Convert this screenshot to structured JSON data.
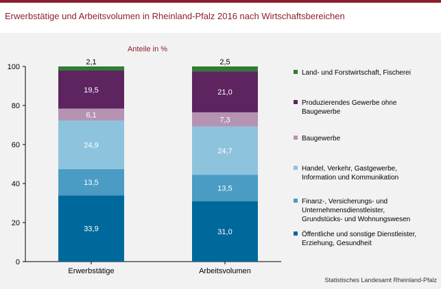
{
  "title": "Erwerbstätige und Arbeitsvolumen in Rheinland-Pfalz 2016 nach Wirtschaftsbereichen",
  "source": "Statistisches Landesamt Rheinland-Pfalz",
  "chart_data": {
    "type": "bar",
    "stacked": true,
    "unit_label": "Anteile in %",
    "categories": [
      "Erwerbstätige",
      "Arbeitsvolumen"
    ],
    "ylim": [
      0,
      100
    ],
    "yticks": [
      0,
      20,
      40,
      60,
      80,
      100
    ],
    "grid": false,
    "legend_position": "right",
    "series": [
      {
        "name": "Öffentliche und sonstige Dienstleister, Erziehung, Gesundheit",
        "values": [
          33.9,
          31.0
        ],
        "labels": [
          "33,9",
          "31,0"
        ],
        "color": "#00699b",
        "label_color": "#ffffff"
      },
      {
        "name": "Finanz-, Versicherungs- und Unternehmensdienstleister, Grundstücks- und Wohnungswesen",
        "values": [
          13.5,
          13.5
        ],
        "labels": [
          "13,5",
          "13,5"
        ],
        "color": "#4a9cc5",
        "label_color": "#ffffff"
      },
      {
        "name": "Handel, Verkehr, Gastgewerbe, Information und Kommunikation",
        "values": [
          24.9,
          24.7
        ],
        "labels": [
          "24,9",
          "24,7"
        ],
        "color": "#8ec3dd",
        "label_color": "#ffffff"
      },
      {
        "name": "Baugewerbe",
        "values": [
          6.1,
          7.3
        ],
        "labels": [
          "6,1",
          "7,3"
        ],
        "color": "#b593b3",
        "label_color": "#ffffff"
      },
      {
        "name": "Produzierendes Gewerbe ohne Baugewerbe",
        "values": [
          19.5,
          21.0
        ],
        "labels": [
          "19,5",
          "21,0"
        ],
        "color": "#5e2460",
        "label_color": "#ffffff"
      },
      {
        "name": "Land- und Forstwirtschaft, Fischerei",
        "values": [
          2.1,
          2.5
        ],
        "labels": [
          "2,1",
          "2,5"
        ],
        "color": "#2e7d32",
        "label_color": "#000000"
      }
    ],
    "legend_order": [
      5,
      4,
      3,
      2,
      1,
      0
    ],
    "legend_lines": [
      [
        "Land- und Forstwirtschaft, Fischerei"
      ],
      [
        "Produzierendes Gewerbe ohne",
        "Baugewerbe"
      ],
      [
        "Baugewerbe"
      ],
      [
        "Handel, Verkehr, Gastgewerbe,",
        "Information und Kommunikation"
      ],
      [
        "Finanz-, Versicherungs- und",
        "Unternehmensdienstleister,",
        "Grundstücks- und Wohnungswesen"
      ],
      [
        "Öffentliche und sonstige Dienstleister,",
        "Erziehung, Gesundheit"
      ]
    ]
  }
}
